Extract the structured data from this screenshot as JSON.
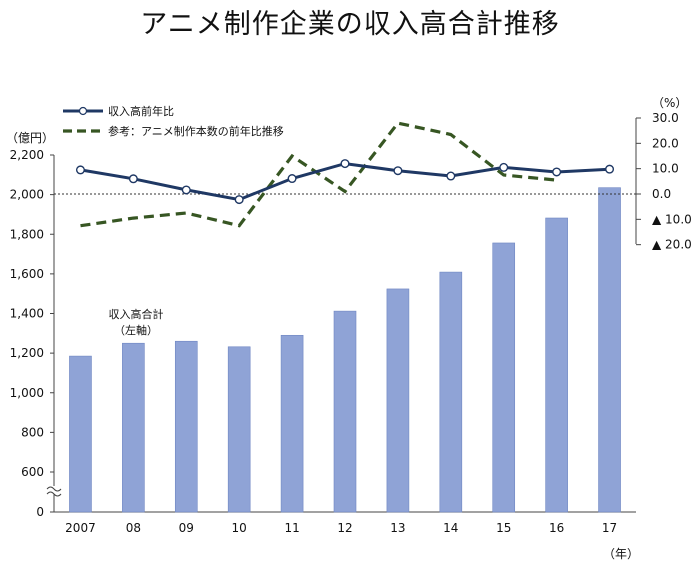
{
  "title": "アニメ制作企業の収入高合計推移",
  "chart_data": {
    "type": "bar+line",
    "categories": [
      "2007",
      "08",
      "09",
      "10",
      "11",
      "12",
      "13",
      "14",
      "15",
      "16",
      "17"
    ],
    "x_unit": "（年）",
    "left_axis": {
      "unit": "（億円）",
      "ticks": [
        "0",
        "600",
        "800",
        "1,000",
        "1,200",
        "1,400",
        "1,600",
        "1,800",
        "2,000",
        "2,200"
      ],
      "tick_values": [
        0,
        600,
        800,
        1000,
        1200,
        1400,
        1600,
        1800,
        2000,
        2200
      ],
      "range": [
        0,
        2200
      ],
      "axis_break": true
    },
    "right_axis": {
      "unit": "（%）",
      "ticks": [
        "30.0",
        "20.0",
        "10.0",
        "0.0",
        "▲ 10.0",
        "▲ 20.0"
      ],
      "tick_values": [
        30,
        20,
        10,
        0,
        -10,
        -20
      ],
      "range": [
        -20,
        30
      ]
    },
    "bars": {
      "name": "収入高合計",
      "name_line2": "（左軸）",
      "values": [
        1185,
        1250,
        1260,
        1232,
        1290,
        1412,
        1524,
        1609,
        1756,
        1882,
        2035
      ]
    },
    "series": [
      {
        "name": "収入高前年比",
        "style": "solid-marker",
        "color": "#1f3864",
        "values": [
          9.5,
          6.0,
          1.6,
          -2.2,
          6.1,
          12.0,
          9.2,
          7.1,
          10.5,
          8.7,
          9.8
        ]
      },
      {
        "name": "参考：アニメ制作本数の前年比推移",
        "style": "dashed",
        "color": "#375623",
        "values": [
          -12.5,
          -9.5,
          -7.5,
          -12.5,
          15.0,
          1.0,
          28.0,
          23.5,
          7.5,
          5.5,
          null
        ]
      }
    ],
    "colors": {
      "bar": "#8fa3d6",
      "bar_edge": "#6f86c2",
      "zero_line": "#333333"
    }
  }
}
